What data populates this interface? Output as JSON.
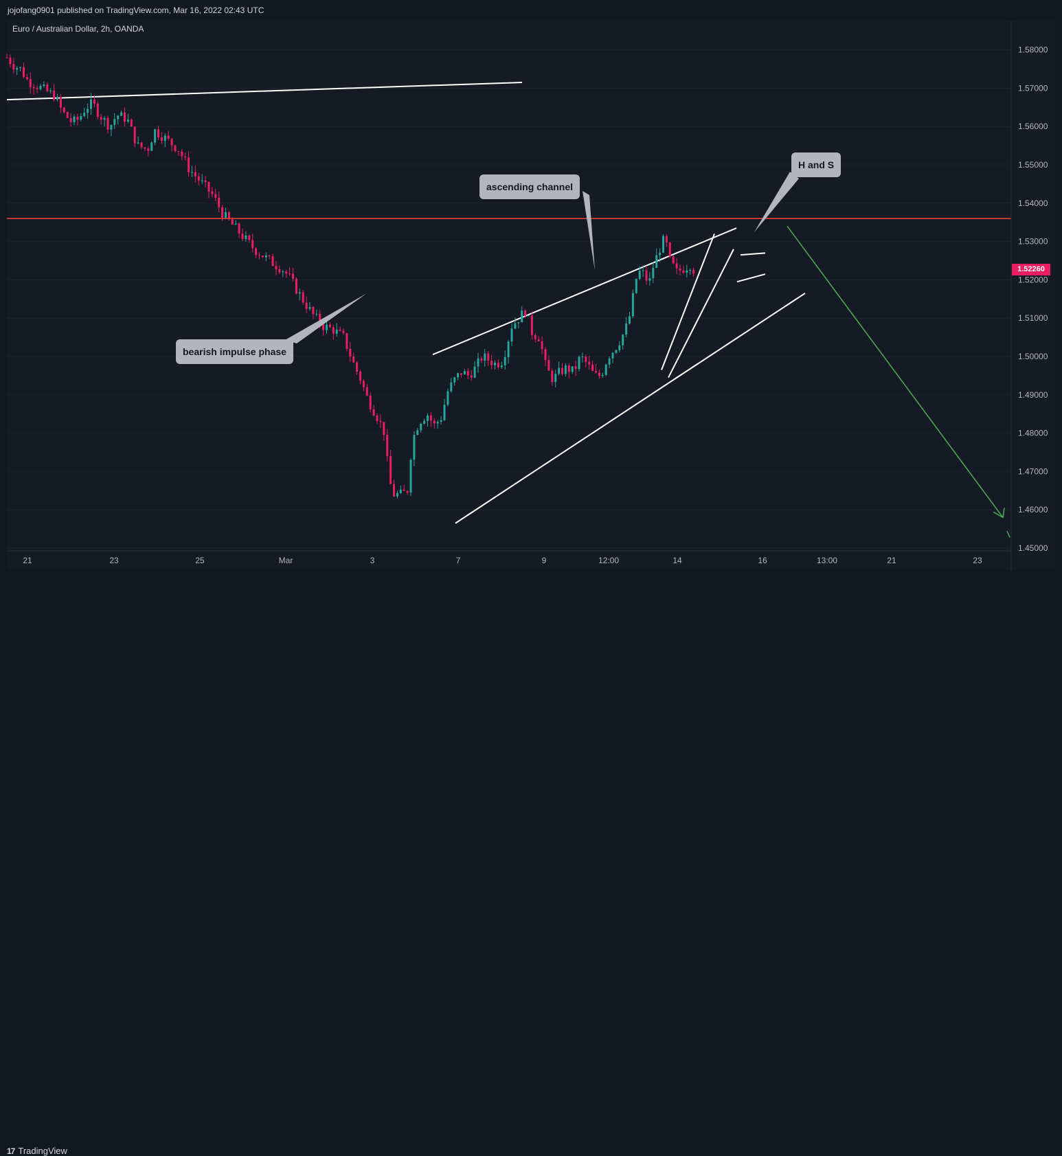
{
  "header": {
    "published": "jojofang0901 published on TradingView.com, Mar 16, 2022 02:43 UTC",
    "symbol": "Euro / Australian Dollar, 2h, OANDA"
  },
  "footer": {
    "brand": "TradingView",
    "logo_glyph": "17"
  },
  "colors": {
    "background": "#161a25",
    "up": "#26a69a",
    "down": "#e91e63",
    "resistance": "#f44336",
    "projection": "#4caf50",
    "trendline": "#ffffff",
    "callout": "#b2b5be"
  },
  "chart_data": {
    "type": "candlestick",
    "title": "Euro / Australian Dollar, 2h, OANDA",
    "xlabel": "",
    "ylabel": "",
    "ylim": [
      1.45,
      1.585
    ],
    "y_ticks": [
      "1.58000",
      "1.57000",
      "1.56000",
      "1.55000",
      "1.54000",
      "1.53000",
      "1.52000",
      "1.51000",
      "1.50000",
      "1.49000",
      "1.48000",
      "1.47000",
      "1.46000",
      "1.45000"
    ],
    "x_ticks": [
      "21",
      "23",
      "25",
      "Mar",
      "3",
      "7",
      "9",
      "12:00",
      "14",
      "16",
      "13:00",
      "21",
      "23"
    ],
    "last_price": "1.52260",
    "resistance_level": 1.536,
    "price_path": [
      [
        0,
        1.578
      ],
      [
        10,
        1.576
      ],
      [
        20,
        1.575
      ],
      [
        30,
        1.572
      ],
      [
        40,
        1.571
      ],
      [
        50,
        1.57
      ],
      [
        60,
        1.569
      ],
      [
        70,
        1.568
      ],
      [
        80,
        1.564
      ],
      [
        95,
        1.561
      ],
      [
        105,
        1.562
      ],
      [
        115,
        1.565
      ],
      [
        125,
        1.566
      ],
      [
        135,
        1.563
      ],
      [
        150,
        1.56
      ],
      [
        160,
        1.563
      ],
      [
        175,
        1.562
      ],
      [
        190,
        1.555
      ],
      [
        205,
        1.554
      ],
      [
        215,
        1.559
      ],
      [
        230,
        1.557
      ],
      [
        250,
        1.554
      ],
      [
        265,
        1.549
      ],
      [
        285,
        1.545
      ],
      [
        300,
        1.542
      ],
      [
        315,
        1.537
      ],
      [
        330,
        1.534
      ],
      [
        345,
        1.531
      ],
      [
        360,
        1.528
      ],
      [
        375,
        1.526
      ],
      [
        390,
        1.524
      ],
      [
        400,
        1.523
      ],
      [
        410,
        1.521
      ],
      [
        420,
        1.518
      ],
      [
        430,
        1.515
      ],
      [
        445,
        1.511
      ],
      [
        460,
        1.508
      ],
      [
        475,
        1.507
      ],
      [
        490,
        1.505
      ],
      [
        505,
        1.498
      ],
      [
        515,
        1.494
      ],
      [
        525,
        1.489
      ],
      [
        540,
        1.484
      ],
      [
        550,
        1.48
      ],
      [
        556,
        1.468
      ],
      [
        563,
        1.464
      ],
      [
        575,
        1.464
      ],
      [
        583,
        1.465
      ],
      [
        590,
        1.478
      ],
      [
        600,
        1.483
      ],
      [
        612,
        1.485
      ],
      [
        622,
        1.482
      ],
      [
        632,
        1.484
      ],
      [
        642,
        1.491
      ],
      [
        652,
        1.494
      ],
      [
        662,
        1.496
      ],
      [
        672,
        1.495
      ],
      [
        682,
        1.497
      ],
      [
        692,
        1.5
      ],
      [
        702,
        1.499
      ],
      [
        712,
        1.498
      ],
      [
        722,
        1.499
      ],
      [
        735,
        1.508
      ],
      [
        745,
        1.51
      ],
      [
        755,
        1.512
      ],
      [
        765,
        1.506
      ],
      [
        775,
        1.505
      ],
      [
        785,
        1.497
      ],
      [
        795,
        1.494
      ],
      [
        805,
        1.496
      ],
      [
        815,
        1.497
      ],
      [
        825,
        1.496
      ],
      [
        835,
        1.5
      ],
      [
        845,
        1.498
      ],
      [
        855,
        1.495
      ],
      [
        865,
        1.495
      ],
      [
        875,
        1.5
      ],
      [
        885,
        1.502
      ],
      [
        895,
        1.505
      ],
      [
        905,
        1.509
      ],
      [
        912,
        1.516
      ],
      [
        918,
        1.522
      ],
      [
        925,
        1.522
      ],
      [
        935,
        1.519
      ],
      [
        940,
        1.523
      ],
      [
        950,
        1.528
      ],
      [
        958,
        1.531
      ],
      [
        965,
        1.525
      ],
      [
        975,
        1.522
      ],
      [
        985,
        1.523
      ],
      [
        995,
        1.524
      ],
      [
        1002,
        1.522
      ]
    ],
    "trendlines": [
      {
        "name": "top-resistance-line",
        "points": [
          [
            0,
            1.567
          ],
          [
            750,
            1.5715
          ]
        ]
      },
      {
        "name": "channel-upper",
        "points": [
          [
            620,
            1.5005
          ],
          [
            1062,
            1.5335
          ]
        ]
      },
      {
        "name": "channel-lower",
        "points": [
          [
            653,
            1.4565
          ],
          [
            1162,
            1.5165
          ]
        ]
      },
      {
        "name": "rising-wedge-left",
        "points": [
          [
            953,
            1.4965
          ],
          [
            1030,
            1.532
          ]
        ]
      },
      {
        "name": "rising-wedge-right",
        "points": [
          [
            963,
            1.4945
          ],
          [
            1058,
            1.528
          ]
        ]
      },
      {
        "name": "flag-top",
        "points": [
          [
            1068,
            1.5265
          ],
          [
            1104,
            1.527
          ]
        ]
      },
      {
        "name": "flag-bottom",
        "points": [
          [
            1063,
            1.5195
          ],
          [
            1104,
            1.5215
          ]
        ]
      }
    ],
    "projection": {
      "from": [
        1136,
        1.534
      ],
      "to": [
        1450,
        1.458
      ]
    },
    "annotations": [
      "ascending channel",
      "H and S",
      "bearish impulse phase"
    ]
  }
}
